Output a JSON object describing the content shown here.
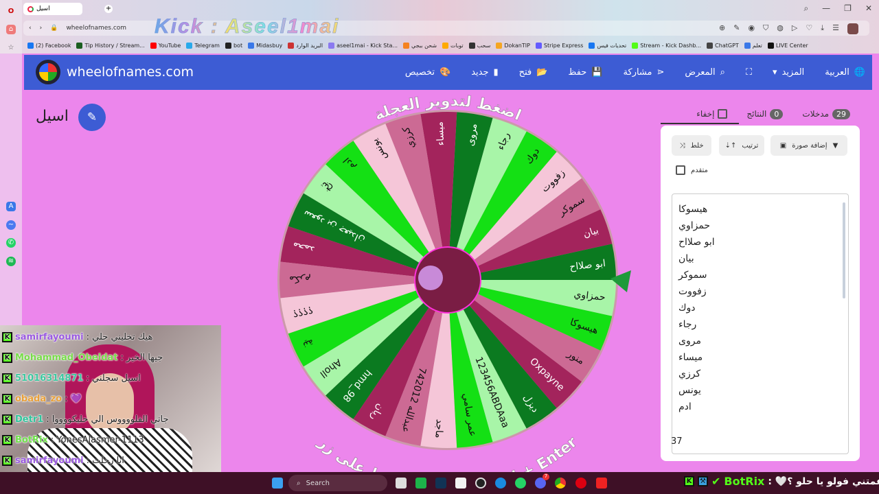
{
  "browser": {
    "tab_title": "اسيل",
    "address": "wheelofnames.com",
    "overlay": "Kick : Aseel1mai",
    "bookmarks": [
      "(2) Facebook",
      "Tip History / Stream...",
      "YouTube",
      "Telegram",
      "bot",
      "Midasbuy",
      "البريد الوارد",
      "aseel1mai - Kick Sta...",
      "شحن ببجي",
      "توبات",
      "سحب",
      "DokanTIP",
      "Stripe Express",
      "تحديات فيس",
      "Stream - Kick Dashb...",
      "ChatGPT",
      "تعلم",
      "LIVE Center"
    ]
  },
  "header": {
    "site": "wheelofnames.com",
    "menu": [
      "العربية",
      "المزيد",
      "",
      "المعرض",
      "مشاركة",
      "حفظ",
      "فتح",
      "جديد",
      "تخصيص"
    ]
  },
  "wheel_title": "اسيل",
  "wheel": {
    "top_text": "اضغط لتدوير العجلة",
    "bottom_text": "أو يمكنك الضغط على زر Ctrl + Enter",
    "palette": [
      "#14e014",
      "#a8f5a8",
      "#0b7a20",
      "#a3245c",
      "#cc6a94",
      "#f5c6d8"
    ],
    "text_colors": [
      "#111",
      "#111",
      "#fff",
      "#fff",
      "#111",
      "#111"
    ],
    "entries": [
      "هيسوكا",
      "حمزاوي",
      "ابو صلااح",
      "بيان",
      "سموكر",
      "زفووت",
      "دوك",
      "رجاء",
      "مروى",
      "ميساء",
      "كرزي",
      "يونس",
      "ادم",
      "تبخ",
      "سعود بن جعيدان",
      "محمد",
      "مكرم",
      "؟؟؟؟",
      "نية",
      "Aholl",
      "hmd_98",
      "ريان",
      "742012 عبدالله",
      "ماجد",
      "عمر سامي",
      "123456ABDAaa",
      "ديزل",
      "Oxpayne",
      "منور"
    ]
  },
  "panel": {
    "tabs": [
      {
        "label": "مدخلات",
        "count": "29"
      },
      {
        "label": "النتائج",
        "count": "0"
      },
      {
        "label": "إخفاء"
      }
    ],
    "shuffle": "خلط",
    "sort": "ترتيب",
    "add_image": "إضافة صورة",
    "advanced": "متقدم",
    "list": [
      "هيسوكا",
      "حمزاوي",
      "ابو صلااح",
      "بيان",
      "سموكر",
      "زفووت",
      "دوك",
      "رجاء",
      "مروى",
      "ميساء",
      "كرزي",
      "يونس",
      "ادم"
    ]
  },
  "chat": [
    {
      "user": "samirfayoumi",
      "color": "#9a5ae0",
      "text": ": هيك تخليني حلي"
    },
    {
      "user": "Mohammad_Obeidat",
      "color": "#78dc4a",
      "text": ": جيها الخير"
    },
    {
      "user": "51016314871",
      "color": "#3cc8a0",
      "text": ": اسيل سجلني"
    },
    {
      "user": "obada_zo",
      "color": "#e8a03a",
      "text": ": 💜"
    },
    {
      "user": "Detr1",
      "color": "#2fc49c",
      "text": ": جاتي الفلووووس الي حليكووووا"
    },
    {
      "user": "BotRix",
      "color": "#6ee04a",
      "text": ": YonesAlasmer-1113"
    },
    {
      "user": "samirfayoumi",
      "color": "#9a5ae0",
      "text": ": انا رحلت"
    }
  ],
  "chat_overlay": {
    "user": "BotRix",
    "text": ": 🤍عمتني فولو يا حلو ؟🤍"
  },
  "list_count": "37",
  "taskbar": {
    "search": "Search",
    "discord_badge": "7"
  }
}
